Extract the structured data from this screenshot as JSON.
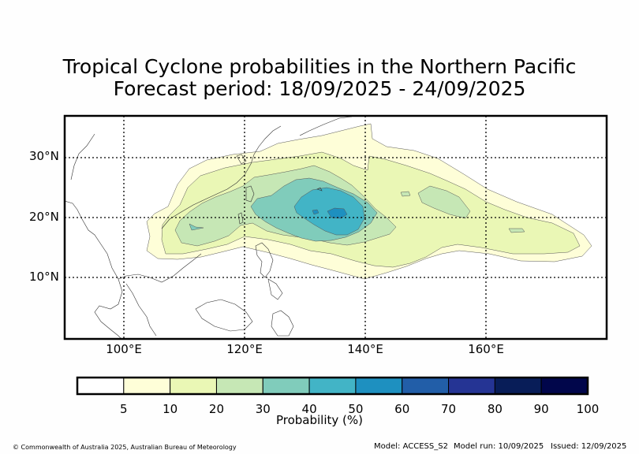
{
  "title": {
    "line1": "Tropical Cyclone probabilities in the Northern Pacific",
    "line2": "Forecast period: 18/09/2025 - 24/09/2025"
  },
  "map": {
    "lon_range": [
      90,
      180
    ],
    "lat_range": [
      0,
      37
    ],
    "lat_ticks": [
      "10°N",
      "20°N",
      "30°N"
    ],
    "lon_ticks": [
      "100°E",
      "120°E",
      "140°E",
      "160°E"
    ],
    "grid": "dotted"
  },
  "colorbar": {
    "label": "Probability (%)",
    "tick_labels": [
      "5",
      "10",
      "20",
      "30",
      "40",
      "50",
      "60",
      "70",
      "80",
      "90",
      "100"
    ],
    "colors": [
      "#ffffff",
      "#fefed8",
      "#eaf7b5",
      "#c6e7b5",
      "#80ccbb",
      "#42b4c6",
      "#1e90c0",
      "#225ea8",
      "#253494",
      "#081d58",
      "#01064b"
    ]
  },
  "footer": {
    "copyright": "© Commonwealth of Australia 2025, Australian Bureau of Meteorology",
    "model": "Model: ACCESS_S2",
    "model_run": "Model run: 10/09/2025",
    "issued": "Issued: 12/09/2025"
  }
}
